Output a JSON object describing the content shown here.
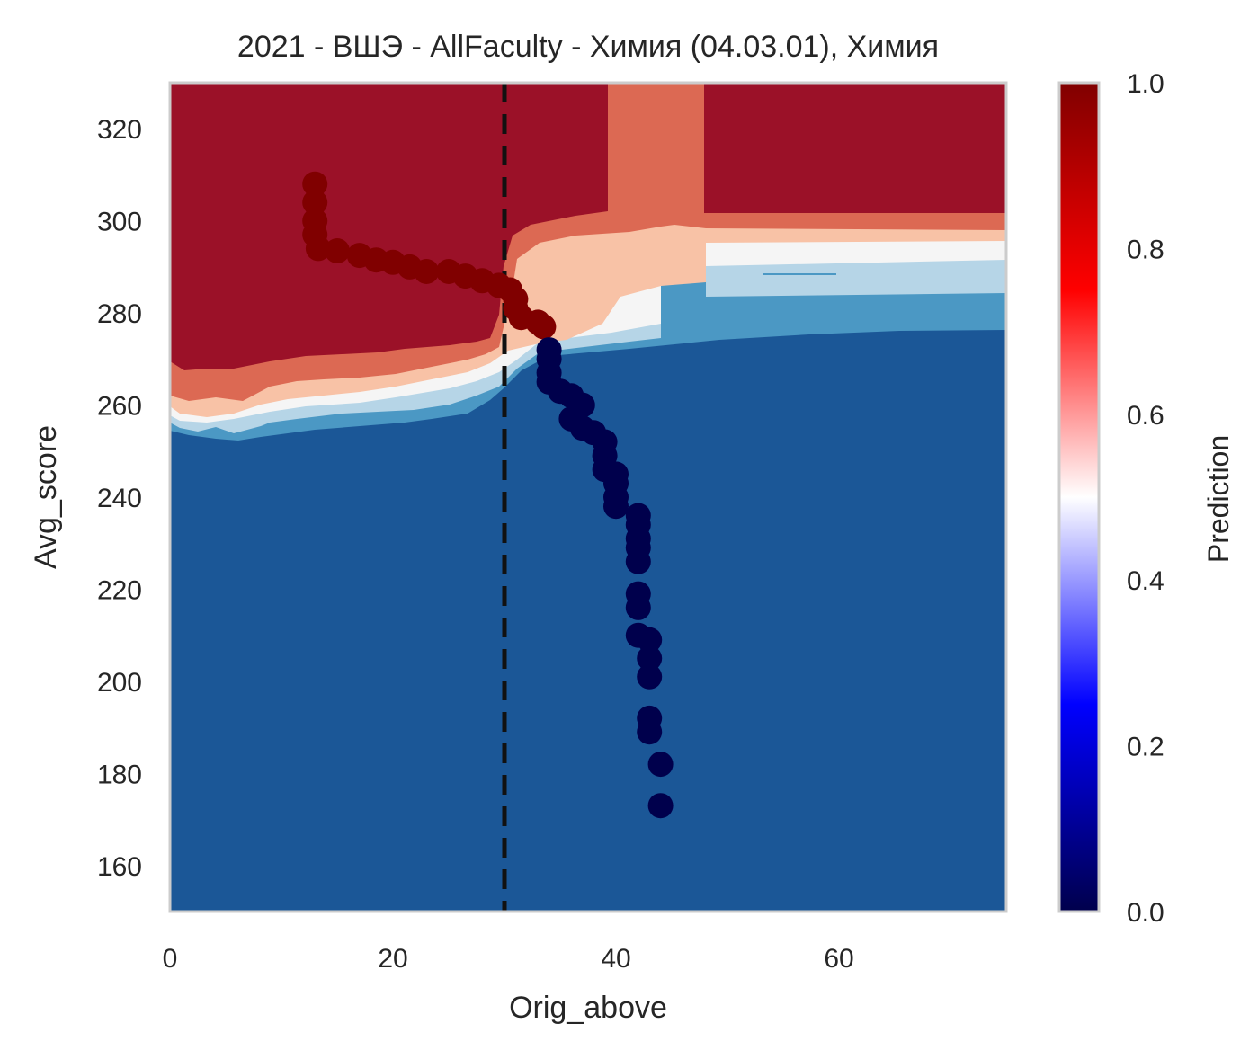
{
  "chart_data": {
    "type": "heatmap",
    "title": "2021 - ВШЭ - AllFaculty - Химия (04.03.01), Химия",
    "xlabel": "Orig_above",
    "ylabel": "Avg_score",
    "xlim": [
      0,
      75
    ],
    "ylim": [
      150,
      330
    ],
    "xticks": [
      0,
      20,
      40,
      60
    ],
    "yticks": [
      160,
      180,
      200,
      220,
      240,
      260,
      280,
      300,
      320
    ],
    "grid": false,
    "threshold_line": {
      "x": 30,
      "style": "dashed",
      "color": "#111111"
    },
    "colorbar": {
      "label": "Prediction",
      "range": [
        0,
        1
      ],
      "ticks": [
        0.0,
        0.2,
        0.4,
        0.6,
        0.8,
        1.0
      ],
      "tick_labels": [
        "0.0",
        "0.2",
        "0.4",
        "0.6",
        "0.8",
        "1.0"
      ],
      "colormap": "seismic"
    },
    "contour_levels": [
      {
        "range": [
          0.0,
          0.2
        ],
        "color": "#1b5797"
      },
      {
        "range": [
          0.2,
          0.3
        ],
        "color": "#4b98c4"
      },
      {
        "range": [
          0.3,
          0.45
        ],
        "color": "#b6d5e7"
      },
      {
        "range": [
          0.45,
          0.55
        ],
        "color": "#f5f5f5"
      },
      {
        "range": [
          0.55,
          0.7
        ],
        "color": "#f8c2a6"
      },
      {
        "range": [
          0.7,
          0.8
        ],
        "color": "#dc6953"
      },
      {
        "range": [
          0.8,
          1.0
        ],
        "color": "#9b1128"
      }
    ],
    "series": [
      {
        "prediction": 1,
        "color": "#800000",
        "points": [
          [
            13,
            308
          ],
          [
            13,
            304
          ],
          [
            13,
            300
          ],
          [
            13,
            297
          ],
          [
            13.3,
            294
          ],
          [
            15,
            293.5
          ],
          [
            17,
            292.5
          ],
          [
            18.5,
            291.5
          ],
          [
            20,
            291
          ],
          [
            21.5,
            290
          ],
          [
            23,
            289
          ],
          [
            25,
            289
          ],
          [
            26.5,
            288
          ],
          [
            28,
            287
          ],
          [
            29.5,
            286
          ],
          [
            30.5,
            285
          ],
          [
            31,
            283
          ],
          [
            31,
            281
          ],
          [
            31.5,
            279
          ],
          [
            33,
            278
          ],
          [
            33.5,
            277
          ]
        ]
      },
      {
        "prediction": 0,
        "color": "#00004c",
        "points": [
          [
            34,
            272
          ],
          [
            34,
            270
          ],
          [
            34,
            267
          ],
          [
            34,
            265
          ],
          [
            35,
            263
          ],
          [
            36,
            262
          ],
          [
            37,
            260
          ],
          [
            36,
            257
          ],
          [
            37,
            255
          ],
          [
            38,
            254
          ],
          [
            39,
            252
          ],
          [
            39,
            249
          ],
          [
            39,
            246
          ],
          [
            40,
            245
          ],
          [
            40,
            243
          ],
          [
            40,
            240
          ],
          [
            40,
            238
          ],
          [
            42,
            236
          ],
          [
            42,
            234
          ],
          [
            42,
            231
          ],
          [
            42,
            229
          ],
          [
            42,
            226
          ],
          [
            42,
            219
          ],
          [
            42,
            216
          ],
          [
            42,
            210
          ],
          [
            43,
            209
          ],
          [
            43,
            205
          ],
          [
            43,
            201
          ],
          [
            43,
            192
          ],
          [
            43,
            189
          ],
          [
            44,
            182
          ],
          [
            44,
            173
          ]
        ]
      }
    ]
  }
}
